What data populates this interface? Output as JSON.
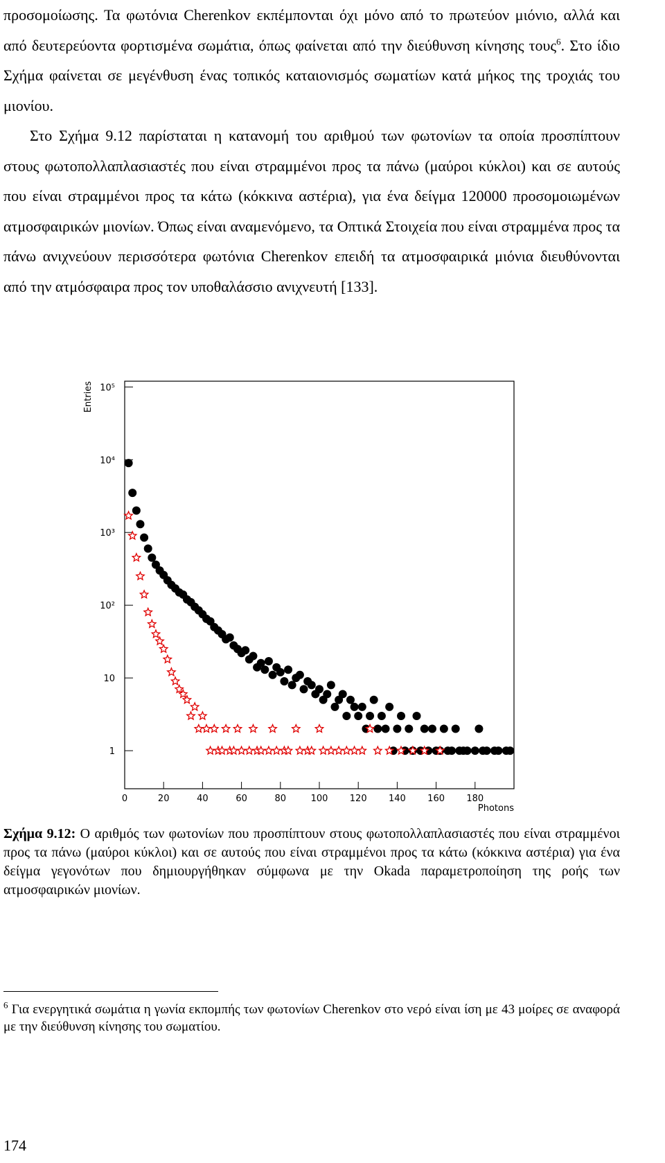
{
  "body": {
    "p1": [
      "προσομοίωσης. Τα φωτόνια Cherenkov εκπέμπονται όχι μόνο από το πρωτεύον μιόνιο, αλλά και από δευτερεύοντα φορτισμένα σωμάτια, όπως φαίνεται από την διεύθυνση κίνησης τους",
      "6",
      ". Στο ίδιο Σχήμα φαίνεται σε μεγένθυση ένας τοπικός καταιονισμός σωματίων κατά μήκος της τροχιάς του μιονίου."
    ],
    "p2": "Στο Σχήμα 9.12 παρίσταται η κατανομή του αριθμού των φωτονίων τα οποία προσπίπτουν στους φωτοπολλαπλασιαστές που είναι στραμμένοι προς τα πάνω (μαύροι κύκλοι) και σε αυτούς που είναι στραμμένοι προς τα κάτω (κόκκινα αστέρια), για ένα δείγμα 120000 προσομοιωμένων ατμοσφαιρικών μιονίων. Όπως είναι αναμενόμενο, τα Οπτικά Στοιχεία που είναι στραμμένα προς τα πάνω ανιχνεύουν περισσότερα φωτόνια Cherenkov επειδή τα ατμοσφαιρικά μιόνια διευθύνονται από την ατμόσφαιρα προς τον υποθαλάσσιο ανιχνευτή [133]."
  },
  "chart_data": {
    "type": "scatter",
    "xlabel": "Photons",
    "ylabel": "Entries",
    "xlim": [
      0,
      200
    ],
    "xticks": [
      0,
      20,
      40,
      60,
      80,
      100,
      120,
      140,
      160,
      180
    ],
    "ylim": [
      0.3,
      120000
    ],
    "log_y": true,
    "yticks": [
      1,
      10,
      {
        "value": 100,
        "label": "10²"
      },
      {
        "value": 1000,
        "label": "10³"
      },
      {
        "value": 10000,
        "label": "10⁴"
      },
      {
        "value": 100000,
        "label": "10⁵"
      }
    ],
    "x": [
      2,
      4,
      6,
      8,
      10,
      12,
      14,
      16,
      18,
      20,
      22,
      24,
      26,
      28,
      30,
      32,
      34,
      36,
      38,
      40,
      42,
      44,
      46,
      48,
      50,
      52,
      54,
      56,
      58,
      60,
      62,
      64,
      66,
      68,
      70,
      72,
      74,
      76,
      78,
      80,
      82,
      84,
      86,
      88,
      90,
      92,
      94,
      96,
      98,
      100,
      102,
      104,
      106,
      108,
      110,
      112,
      114,
      116,
      118,
      120,
      122,
      124,
      126,
      128,
      130,
      132,
      134,
      136,
      138,
      140,
      142,
      144,
      146,
      148,
      150,
      152,
      154,
      156,
      158,
      160,
      162,
      164,
      166,
      168,
      170,
      172,
      174,
      176,
      178,
      180,
      182,
      184,
      186,
      188,
      190,
      192,
      194,
      196,
      198
    ],
    "series": [
      {
        "color": "#000000",
        "marker": "circle",
        "values": [
          9000,
          3500,
          2000,
          1300,
          850,
          600,
          450,
          360,
          300,
          260,
          220,
          190,
          170,
          150,
          140,
          120,
          110,
          95,
          85,
          75,
          65,
          60,
          50,
          45,
          40,
          34,
          36,
          28,
          25,
          22,
          24,
          18,
          20,
          14,
          16,
          13,
          17,
          11,
          14,
          12,
          9,
          13,
          8,
          10,
          11,
          7,
          9,
          8,
          6,
          7,
          5,
          6,
          8,
          4,
          5,
          6,
          3,
          5,
          4,
          3,
          4,
          2,
          3,
          5,
          2,
          3,
          2,
          4,
          1,
          2,
          3,
          1,
          2,
          1,
          3,
          1,
          2,
          1,
          2,
          1,
          1,
          2,
          1,
          1,
          2,
          1,
          1,
          1,
          null,
          1,
          2,
          1,
          1,
          null,
          1,
          1,
          null,
          1,
          1
        ]
      },
      {
        "color": "#e00000",
        "marker": "star",
        "values": [
          1700,
          900,
          450,
          250,
          140,
          80,
          55,
          40,
          32,
          25,
          18,
          12,
          9,
          7,
          6,
          5,
          3,
          4,
          2,
          3,
          2,
          1,
          2,
          1,
          1,
          2,
          1,
          1,
          2,
          1,
          null,
          1,
          2,
          1,
          1,
          null,
          1,
          2,
          1,
          null,
          1,
          1,
          null,
          2,
          1,
          null,
          1,
          1,
          null,
          2,
          1,
          null,
          1,
          null,
          1,
          null,
          1,
          null,
          1,
          null,
          1,
          null,
          2,
          null,
          1,
          null,
          null,
          1,
          null,
          null,
          1,
          null,
          null,
          1,
          null,
          null,
          1,
          null,
          null,
          null,
          1,
          null,
          null,
          null,
          null,
          null,
          null,
          null,
          null,
          null,
          null,
          null,
          null,
          null,
          null,
          null,
          null,
          null,
          null
        ]
      }
    ]
  },
  "caption": {
    "label": "Σχήμα 9.12:",
    "text": " Ο αριθμός των φωτονίων που προσπίπτουν στους φωτοπολλαπλασιαστές που είναι στραμμένοι προς τα πάνω (μαύροι κύκλοι) και σε αυτούς που είναι στραμμένοι προς τα κάτω (κόκκινα αστέρια) για ένα δείγμα γεγονότων που δημιουργήθηκαν σύμφωνα με την Okada παραμετροποίηση της ροής των ατμοσφαιρικών μιονίων."
  },
  "footnote": {
    "mark": "6",
    "text": " Για ενεργητικά σωμάτια η γωνία εκπομπής των φωτονίων Cherenkov στο νερό είναι ίση με 43 μοίρες σε αναφορά με την διεύθυνση κίνησης του σωματίου."
  },
  "page_number": "174"
}
